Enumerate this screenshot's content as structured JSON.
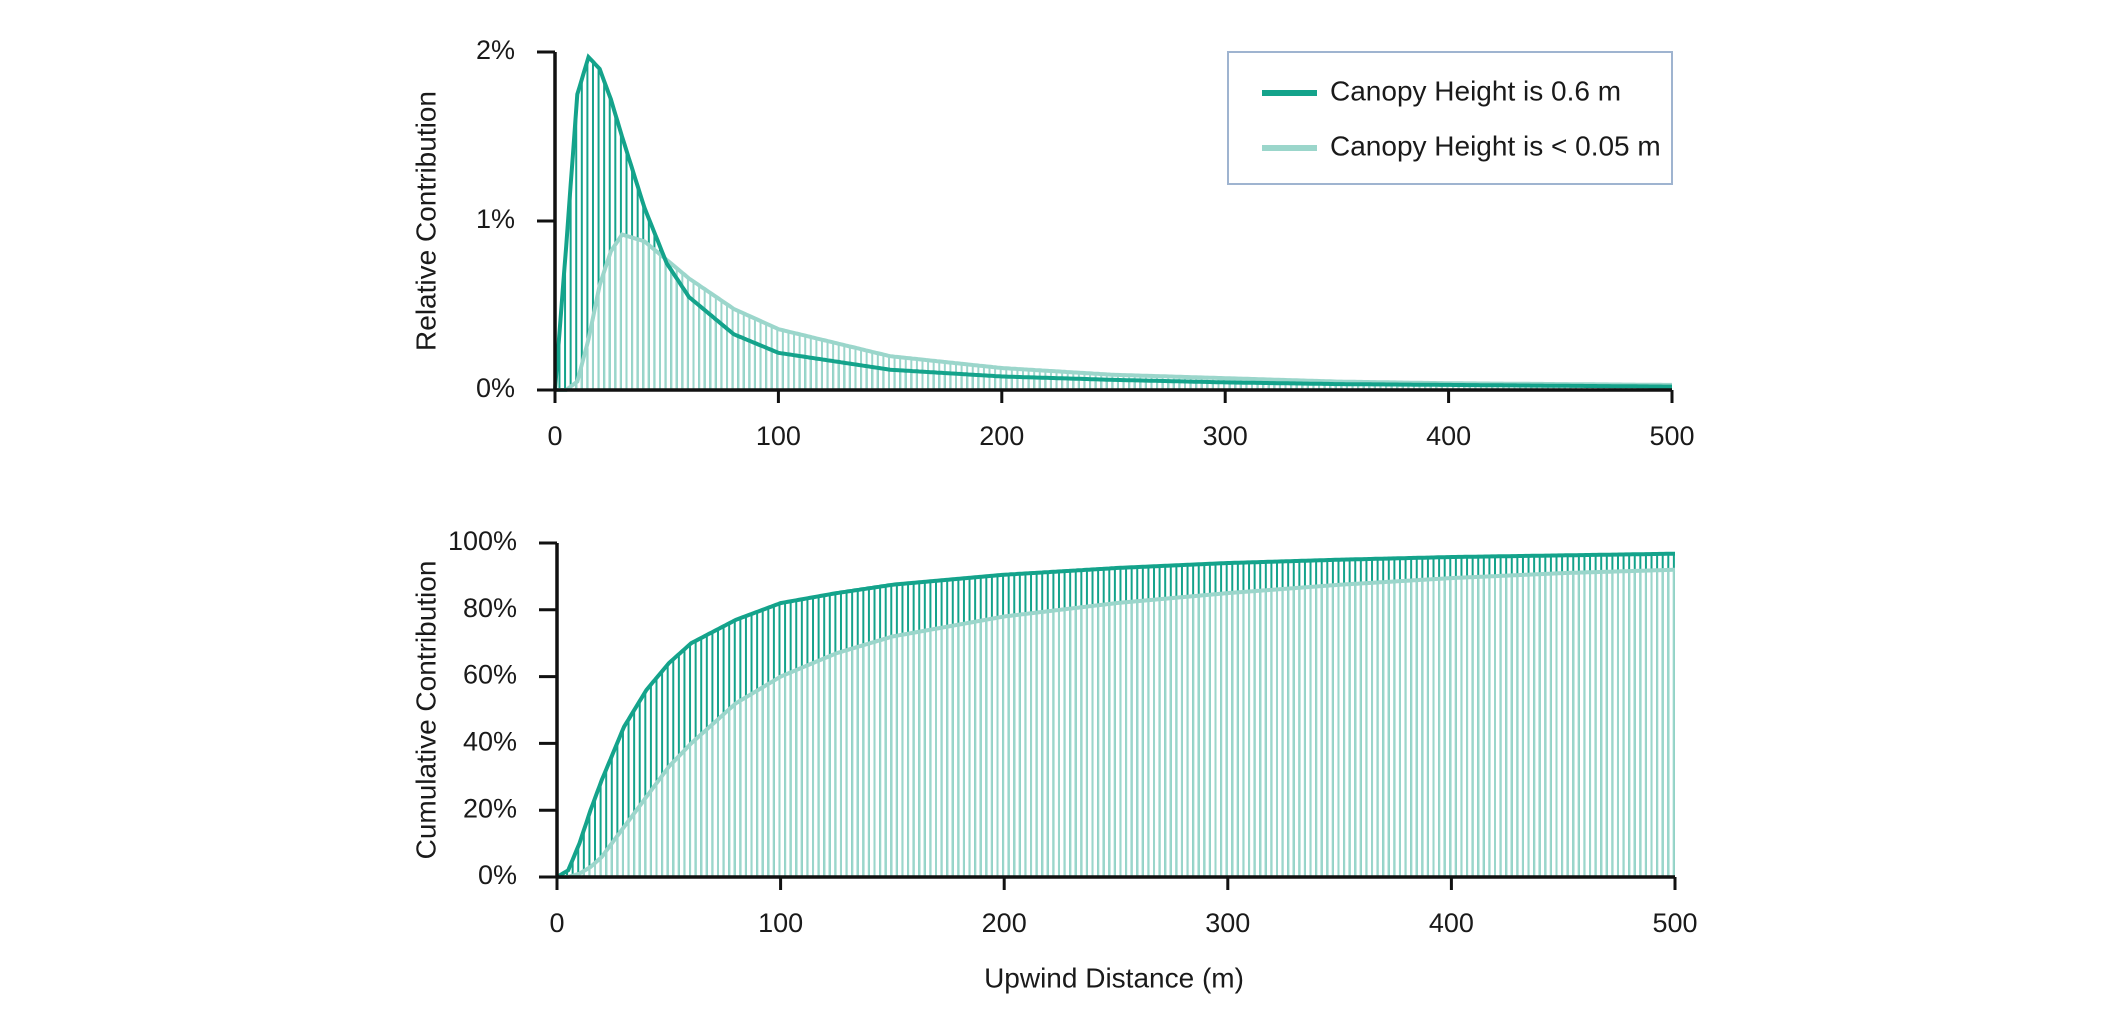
{
  "colors": {
    "dark_teal": "#14a38b",
    "light_teal": "#9bd6cb",
    "axis": "#111111",
    "legend_border": "#9fb4d0"
  },
  "legend": {
    "items": [
      {
        "label": "Canopy Height is 0.6 m",
        "color": "#14a38b"
      },
      {
        "label": "Canopy Height is < 0.05 m",
        "color": "#9bd6cb"
      }
    ],
    "placement": "top-right"
  },
  "chart_data": [
    {
      "type": "line",
      "ylabel": "Relative Contribution",
      "xlabel": "",
      "xlim": [
        0,
        500
      ],
      "ylim": [
        0,
        2
      ],
      "x_ticks": [
        "0",
        "100",
        "200",
        "300",
        "400",
        "500"
      ],
      "y_ticks": [
        "0%",
        "1%",
        "2%"
      ],
      "grid": false,
      "style": "line with vertical drop-lines to the x-axis",
      "x": [
        0,
        5,
        10,
        15,
        20,
        25,
        30,
        40,
        50,
        60,
        80,
        100,
        150,
        200,
        250,
        300,
        350,
        400,
        450,
        500
      ],
      "series": [
        {
          "name": "Canopy Height is 0.6 m",
          "values": [
            0,
            0.85,
            1.75,
            1.97,
            1.9,
            1.72,
            1.5,
            1.08,
            0.75,
            0.55,
            0.33,
            0.22,
            0.12,
            0.08,
            0.06,
            0.045,
            0.035,
            0.03,
            0.025,
            0.02
          ]
        },
        {
          "name": "Canopy Height is < 0.05 m",
          "values": [
            0,
            0.0,
            0.05,
            0.3,
            0.62,
            0.82,
            0.92,
            0.88,
            0.77,
            0.66,
            0.48,
            0.36,
            0.2,
            0.13,
            0.09,
            0.07,
            0.05,
            0.04,
            0.035,
            0.03
          ]
        }
      ]
    },
    {
      "type": "line",
      "ylabel": "Cumulative Contribution",
      "xlabel": "Upwind Distance (m)",
      "xlim": [
        0,
        500
      ],
      "ylim": [
        0,
        100
      ],
      "x_ticks": [
        "0",
        "100",
        "200",
        "300",
        "400",
        "500"
      ],
      "y_ticks": [
        "0%",
        "20%",
        "40%",
        "60%",
        "80%",
        "100%"
      ],
      "grid": false,
      "style": "line with vertical drop-lines to the x-axis",
      "x": [
        0,
        5,
        10,
        15,
        20,
        30,
        40,
        50,
        60,
        80,
        100,
        125,
        150,
        200,
        250,
        300,
        350,
        400,
        450,
        500
      ],
      "series": [
        {
          "name": "Canopy Height is 0.6 m",
          "values": [
            0,
            2,
            10,
            20,
            29,
            45,
            56,
            64,
            70,
            77,
            82,
            85,
            87.5,
            90.5,
            92.5,
            94,
            95,
            95.8,
            96.3,
            96.8
          ]
        },
        {
          "name": "Canopy Height is < 0.05 m",
          "values": [
            0,
            0,
            1,
            3,
            6,
            15,
            24,
            33,
            40,
            52,
            60,
            67,
            72,
            78,
            82,
            85,
            87.5,
            89.5,
            91,
            92
          ]
        }
      ]
    }
  ]
}
